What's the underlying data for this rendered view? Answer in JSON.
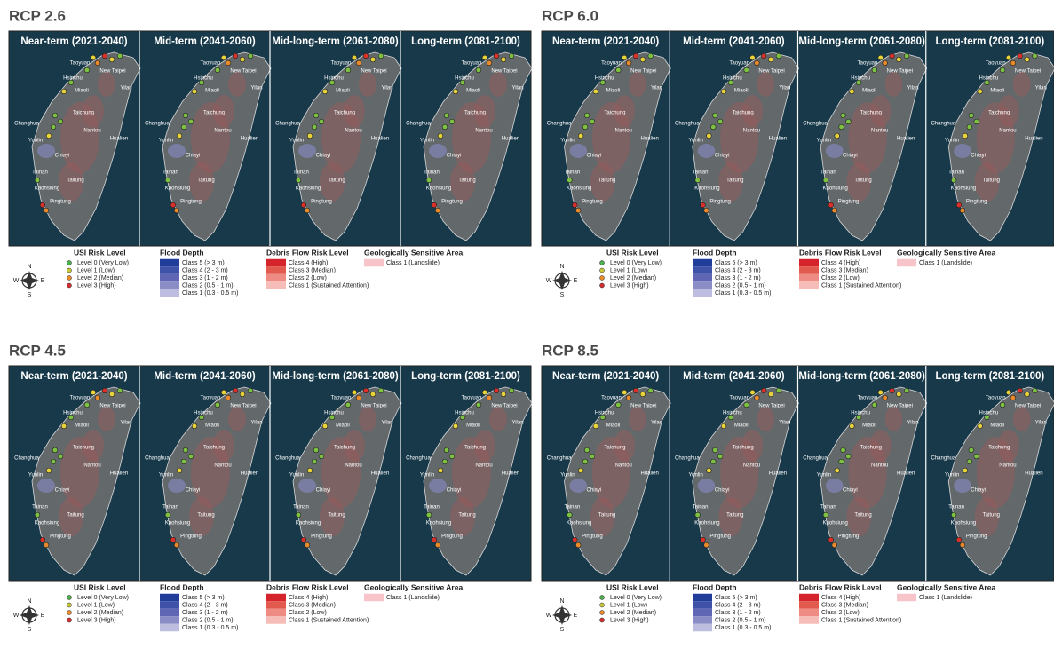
{
  "panels": [
    {
      "title": "RCP 2.6"
    },
    {
      "title": "RCP 6.0"
    },
    {
      "title": "RCP 4.5"
    },
    {
      "title": "RCP 8.5"
    }
  ],
  "periods": [
    "Near-term (2021-2040)",
    "Mid-term (2041-2060)",
    "Mid-long-term (2061-2080)",
    "Long-term (2081-2100)"
  ],
  "cities": [
    "Taoyuan",
    "New Taipei",
    "Hsinchu",
    "Yilan",
    "Miaoli",
    "Taichung",
    "Changhua",
    "Nantou",
    "Hualien",
    "Yunlin",
    "Chiayi",
    "Tainan",
    "Taitung",
    "Kaohsiung",
    "Pingtung"
  ],
  "compass": {
    "n": "N",
    "s": "S",
    "e": "E",
    "w": "W"
  },
  "legend": {
    "usi": {
      "title": "USI Risk Level",
      "items": [
        "Level 0 (Very Low)",
        "Level 1 (Low)",
        "Level 2 (Median)",
        "Level 3 (High)"
      ]
    },
    "flood": {
      "title": "Flood Depth",
      "items": [
        "Class 5 (> 3 m)",
        "Class 4 (2 - 3 m)",
        "Class 3 (1 - 2 m)",
        "Class 2 (0.5 - 1 m)",
        "Class 1 (0.3 - 0.5 m)"
      ]
    },
    "debris": {
      "title": "Debris Flow Risk Level",
      "items": [
        "Class 4 (High)",
        "Class 3 (Median)",
        "Class 2 (Low)",
        "Class 1 (Sustained Attention)"
      ]
    },
    "geo": {
      "title": "Geologically Sensitive Area",
      "items": [
        "Class 1 (Landslide)"
      ]
    }
  }
}
